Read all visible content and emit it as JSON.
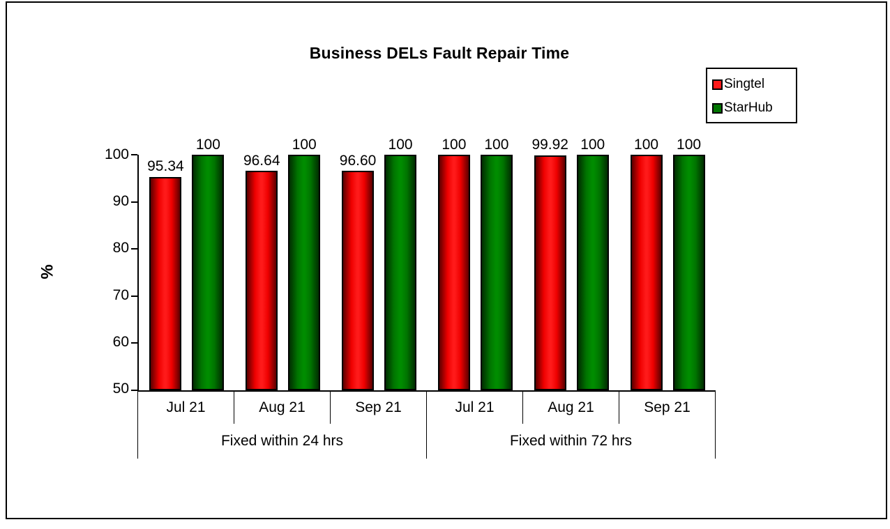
{
  "page": {
    "background": "#ffffff",
    "frame_border_color": "#000000"
  },
  "chart_data": {
    "type": "bar",
    "title": "Business DELs Fault Repair Time",
    "ylabel": "%",
    "ylim": [
      50,
      100
    ],
    "yticks": [
      "100",
      "90",
      "80",
      "70",
      "60",
      "50"
    ],
    "grid": false,
    "legend_position": "top-right",
    "group_labels": [
      "Fixed within 24 hrs",
      "Fixed within 72 hrs"
    ],
    "categories": [
      "Jul 21",
      "Aug 21",
      "Sep 21",
      "Jul 21",
      "Aug 21",
      "Sep 21"
    ],
    "series": [
      {
        "name": "Singtel",
        "color": "#ee0000",
        "highlight_color": "#ff1a1a",
        "edge_color": "#5c0000",
        "values": [
          95.34,
          96.64,
          96.6,
          100,
          99.92,
          100
        ],
        "labels": [
          "95.34",
          "96.64",
          "96.60",
          "100",
          "99.92",
          "100"
        ]
      },
      {
        "name": "StarHub",
        "color": "#007500",
        "highlight_color": "#008c00",
        "edge_color": "#012e01",
        "values": [
          100,
          100,
          100,
          100,
          100,
          100
        ],
        "labels": [
          "100",
          "100",
          "100",
          "100",
          "100",
          "100"
        ]
      }
    ]
  }
}
